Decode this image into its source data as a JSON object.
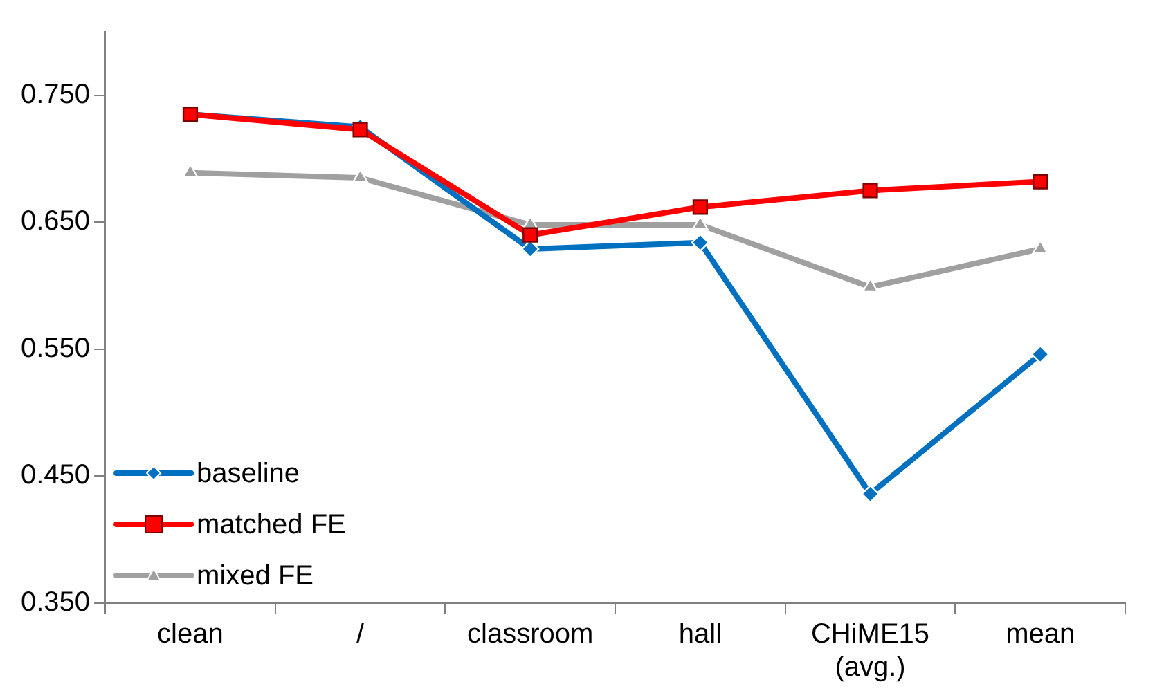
{
  "chart_data": {
    "type": "line",
    "categories": [
      "clean",
      "/",
      "classroom",
      "hall",
      "CHiME15 (avg.)",
      "mean"
    ],
    "series": [
      {
        "name": "baseline",
        "color": "#0070c0",
        "marker": "diamond",
        "values": [
          0.735,
          0.725,
          0.629,
          0.634,
          0.436,
          0.546
        ]
      },
      {
        "name": "matched FE",
        "color": "#ff0000",
        "marker": "square",
        "values": [
          0.735,
          0.723,
          0.64,
          0.662,
          0.675,
          0.682
        ]
      },
      {
        "name": "mixed FE",
        "color": "#a0a0a0",
        "marker": "triangle",
        "values": [
          0.689,
          0.685,
          0.648,
          0.648,
          0.599,
          0.629
        ]
      }
    ],
    "ylim": [
      0.35,
      0.8
    ],
    "yticks": [
      {
        "value": 0.35,
        "label": "0.350"
      },
      {
        "value": 0.45,
        "label": "0.450"
      },
      {
        "value": 0.55,
        "label": "0.550"
      },
      {
        "value": 0.65,
        "label": "0.650"
      },
      {
        "value": 0.75,
        "label": "0.750"
      }
    ],
    "grid": false,
    "legend": "bottom left"
  }
}
